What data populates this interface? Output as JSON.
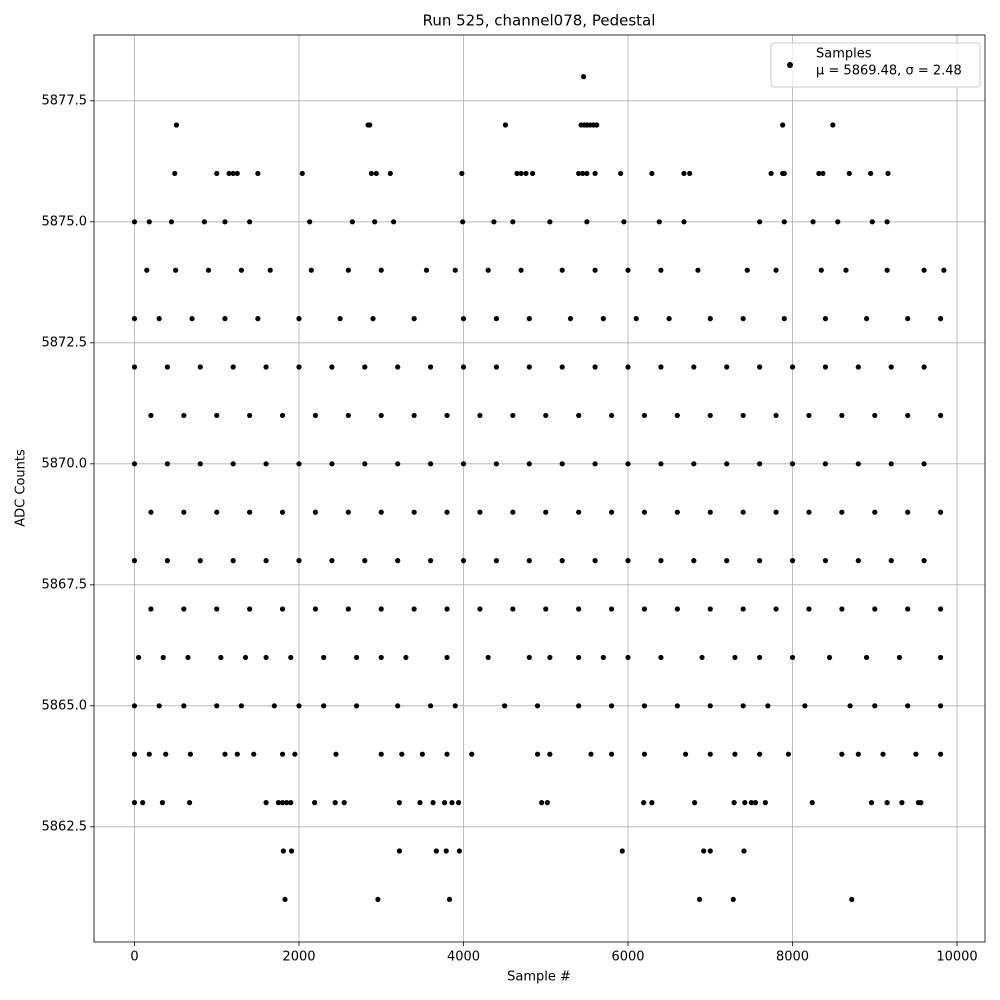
{
  "chart_data": {
    "type": "scatter",
    "title": "Run 525, channel078, Pedestal",
    "x_label": "Sample #",
    "y_label": "ADC Counts",
    "xlim": [
      -492,
      10340
    ],
    "ylim": [
      5860.12,
      5878.86
    ],
    "xticks": [
      0,
      2000,
      4000,
      6000,
      8000,
      10000
    ],
    "yticks": [
      5862.5,
      {
        "value": 5865,
        "label": "5865.0"
      },
      5867.5,
      {
        "value": 5870,
        "label": "5870.0"
      },
      5872.5,
      {
        "value": 5875,
        "label": "5875.0"
      },
      5877.5
    ],
    "grid": true,
    "legend": "upper right",
    "series": [
      {
        "name": "Samples",
        "stats": "μ = 5869.48, σ = 2.48",
        "color": "#000000",
        "x": [
          0,
          400,
          800,
          1200,
          1600,
          2000,
          2400,
          2800,
          3200,
          3600,
          4000,
          4400,
          4800,
          5200,
          5600,
          6000,
          6400,
          6800,
          7200,
          7600,
          8000,
          8400,
          8800,
          9200,
          9600,
          200,
          600,
          1000,
          1400,
          1800,
          2200,
          2600,
          3000,
          3400,
          3800,
          4200,
          4600,
          5000,
          5400,
          5800,
          6200,
          6600,
          7000,
          7400,
          7800,
          8200,
          8600,
          9000,
          9400,
          9800,
          0,
          400,
          800,
          1200,
          1600,
          2000,
          2400,
          2800,
          3200,
          3600,
          4000,
          4400,
          4800,
          5200,
          5600,
          6000,
          6400,
          6800,
          7200,
          7600,
          8000,
          8400,
          8800,
          9200,
          9600,
          200,
          600,
          1000,
          1400,
          1800,
          2200,
          2600,
          3000,
          3400,
          3800,
          4200,
          4600,
          5000,
          5400,
          5800,
          6200,
          6600,
          7000,
          7400,
          7800,
          8200,
          8600,
          9000,
          9400,
          9800,
          0,
          400,
          800,
          1200,
          1600,
          2000,
          2400,
          2800,
          3200,
          3600,
          4000,
          4400,
          4800,
          5200,
          5600,
          6000,
          6400,
          6800,
          7200,
          7600,
          8000,
          8400,
          8800,
          9200,
          9600,
          200,
          600,
          1000,
          1400,
          1800,
          2200,
          2600,
          3000,
          3400,
          3800,
          4200,
          4600,
          5000,
          5400,
          5800,
          6200,
          6600,
          7000,
          7400,
          7800,
          8200,
          8600,
          9000,
          9400,
          9800,
          0,
          300,
          700,
          1100,
          1500,
          2000,
          2500,
          2900,
          3400,
          4000,
          4400,
          4800,
          5300,
          5700,
          6100,
          6500,
          7000,
          7400,
          7900,
          8400,
          8900,
          9400,
          9800,
          150,
          500,
          900,
          1300,
          1650,
          2150,
          2600,
          3000,
          3550,
          3900,
          4300,
          4700,
          5200,
          5600,
          6000,
          6400,
          6850,
          7450,
          7800,
          8350,
          8650,
          9150,
          9600,
          9840,
          0,
          180,
          450,
          850,
          1100,
          1400,
          2130,
          2650,
          2920,
          3150,
          3990,
          4370,
          4600,
          5050,
          5500,
          5950,
          6380,
          6680,
          7600,
          7900,
          8250,
          8550,
          8970,
          9150,
          50,
          350,
          650,
          1050,
          1350,
          1600,
          1900,
          2300,
          2700,
          3000,
          3300,
          3800,
          4300,
          4800,
          5050,
          5400,
          5700,
          6000,
          6400,
          6900,
          7300,
          7600,
          8000,
          8450,
          8900,
          9300,
          9800,
          0,
          300,
          600,
          1000,
          1300,
          1700,
          2000,
          2300,
          2700,
          3200,
          3600,
          3900,
          4500,
          4900,
          5400,
          5800,
          6200,
          6600,
          7000,
          7400,
          7700,
          8150,
          8700,
          9000,
          9400,
          9800,
          0,
          180,
          380,
          680,
          1100,
          1250,
          1450,
          1800,
          1950,
          2450,
          3000,
          3250,
          3500,
          3800,
          4100,
          4900,
          5050,
          5550,
          5800,
          6200,
          6700,
          7000,
          7300,
          7600,
          7950,
          8600,
          8800,
          9100,
          9500,
          9800,
          5460,
          510,
          2840,
          2860,
          4510,
          5430,
          5470,
          5500,
          5540,
          5580,
          5620,
          7880,
          8490,
          490,
          1000,
          1150,
          1200,
          1250,
          1500,
          2040,
          2880,
          2940,
          3110,
          3980,
          4650,
          4700,
          4760,
          4840,
          5400,
          5450,
          5500,
          5600,
          5910,
          6290,
          6680,
          6750,
          7740,
          7880,
          7900,
          8320,
          8370,
          8690,
          8950,
          9160,
          0,
          100,
          340,
          670,
          1600,
          1750,
          1800,
          1850,
          1900,
          2190,
          2440,
          2550,
          3220,
          3470,
          3630,
          3770,
          3860,
          3940,
          4950,
          5020,
          6190,
          6290,
          6810,
          7290,
          7420,
          7500,
          7550,
          7670,
          8240,
          8960,
          9150,
          9330,
          9530,
          9560,
          1810,
          1910,
          3220,
          3670,
          3790,
          3950,
          5930,
          6920,
          7000,
          7410,
          1830,
          2960,
          3830,
          6870,
          7280,
          8720
        ],
        "values": [
          5872,
          5872,
          5872,
          5872,
          5872,
          5872,
          5872,
          5872,
          5872,
          5872,
          5872,
          5872,
          5872,
          5872,
          5872,
          5872,
          5872,
          5872,
          5872,
          5872,
          5872,
          5872,
          5872,
          5872,
          5872,
          5871,
          5871,
          5871,
          5871,
          5871,
          5871,
          5871,
          5871,
          5871,
          5871,
          5871,
          5871,
          5871,
          5871,
          5871,
          5871,
          5871,
          5871,
          5871,
          5871,
          5871,
          5871,
          5871,
          5871,
          5871,
          5870,
          5870,
          5870,
          5870,
          5870,
          5870,
          5870,
          5870,
          5870,
          5870,
          5870,
          5870,
          5870,
          5870,
          5870,
          5870,
          5870,
          5870,
          5870,
          5870,
          5870,
          5870,
          5870,
          5870,
          5870,
          5869,
          5869,
          5869,
          5869,
          5869,
          5869,
          5869,
          5869,
          5869,
          5869,
          5869,
          5869,
          5869,
          5869,
          5869,
          5869,
          5869,
          5869,
          5869,
          5869,
          5869,
          5869,
          5869,
          5869,
          5869,
          5868,
          5868,
          5868,
          5868,
          5868,
          5868,
          5868,
          5868,
          5868,
          5868,
          5868,
          5868,
          5868,
          5868,
          5868,
          5868,
          5868,
          5868,
          5868,
          5868,
          5868,
          5868,
          5868,
          5868,
          5868,
          5867,
          5867,
          5867,
          5867,
          5867,
          5867,
          5867,
          5867,
          5867,
          5867,
          5867,
          5867,
          5867,
          5867,
          5867,
          5867,
          5867,
          5867,
          5867,
          5867,
          5867,
          5867,
          5867,
          5867,
          5867,
          5873,
          5873,
          5873,
          5873,
          5873,
          5873,
          5873,
          5873,
          5873,
          5873,
          5873,
          5873,
          5873,
          5873,
          5873,
          5873,
          5873,
          5873,
          5873,
          5873,
          5873,
          5873,
          5873,
          5874,
          5874,
          5874,
          5874,
          5874,
          5874,
          5874,
          5874,
          5874,
          5874,
          5874,
          5874,
          5874,
          5874,
          5874,
          5874,
          5874,
          5874,
          5874,
          5874,
          5874,
          5874,
          5874,
          5874,
          5875,
          5875,
          5875,
          5875,
          5875,
          5875,
          5875,
          5875,
          5875,
          5875,
          5875,
          5875,
          5875,
          5875,
          5875,
          5875,
          5875,
          5875,
          5875,
          5875,
          5875,
          5875,
          5875,
          5875,
          5866,
          5866,
          5866,
          5866,
          5866,
          5866,
          5866,
          5866,
          5866,
          5866,
          5866,
          5866,
          5866,
          5866,
          5866,
          5866,
          5866,
          5866,
          5866,
          5866,
          5866,
          5866,
          5866,
          5866,
          5866,
          5866,
          5866,
          5865,
          5865,
          5865,
          5865,
          5865,
          5865,
          5865,
          5865,
          5865,
          5865,
          5865,
          5865,
          5865,
          5865,
          5865,
          5865,
          5865,
          5865,
          5865,
          5865,
          5865,
          5865,
          5865,
          5865,
          5865,
          5865,
          5864,
          5864,
          5864,
          5864,
          5864,
          5864,
          5864,
          5864,
          5864,
          5864,
          5864,
          5864,
          5864,
          5864,
          5864,
          5864,
          5864,
          5864,
          5864,
          5864,
          5864,
          5864,
          5864,
          5864,
          5864,
          5864,
          5864,
          5864,
          5864,
          5864,
          5878,
          5877,
          5877,
          5877,
          5877,
          5877,
          5877,
          5877,
          5877,
          5877,
          5877,
          5877,
          5877,
          5876,
          5876,
          5876,
          5876,
          5876,
          5876,
          5876,
          5876,
          5876,
          5876,
          5876,
          5876,
          5876,
          5876,
          5876,
          5876,
          5876,
          5876,
          5876,
          5876,
          5876,
          5876,
          5876,
          5876,
          5876,
          5876,
          5876,
          5876,
          5876,
          5876,
          5876,
          5863,
          5863,
          5863,
          5863,
          5863,
          5863,
          5863,
          5863,
          5863,
          5863,
          5863,
          5863,
          5863,
          5863,
          5863,
          5863,
          5863,
          5863,
          5863,
          5863,
          5863,
          5863,
          5863,
          5863,
          5863,
          5863,
          5863,
          5863,
          5863,
          5863,
          5863,
          5863,
          5863,
          5863,
          5862,
          5862,
          5862,
          5862,
          5862,
          5862,
          5862,
          5862,
          5862,
          5862,
          5861,
          5861,
          5861,
          5861,
          5861,
          5861
        ]
      }
    ]
  }
}
